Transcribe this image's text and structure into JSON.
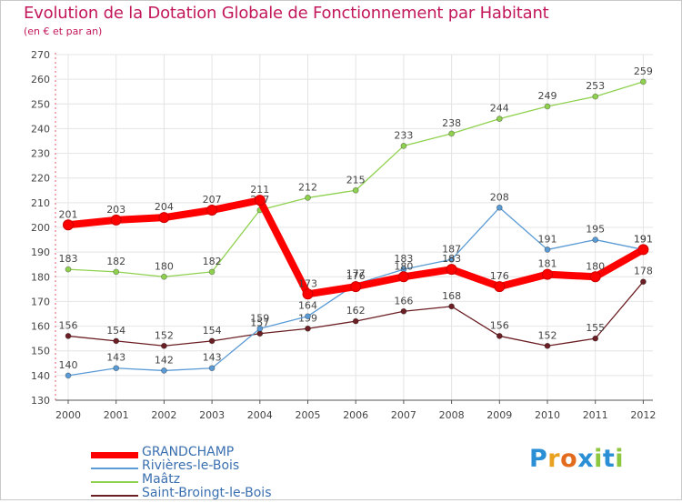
{
  "chart_data": {
    "type": "line",
    "title": "Evolution de la Dotation Globale de Fonctionnement par Habitant",
    "subtitle": "(en € et par an)",
    "xlabel": "",
    "ylabel": "",
    "categories": [
      "2000",
      "2001",
      "2002",
      "2003",
      "2004",
      "2005",
      "2006",
      "2007",
      "2008",
      "2009",
      "2010",
      "2011",
      "2012"
    ],
    "ylim": [
      130,
      270
    ],
    "yticks": [
      130,
      140,
      150,
      160,
      170,
      180,
      190,
      200,
      210,
      220,
      230,
      240,
      250,
      260,
      270
    ],
    "grid": true,
    "series": [
      {
        "name": "Saint-Broingt-le-Bois",
        "color": "#6b1f24",
        "values": [
          156,
          154,
          152,
          154,
          157,
          159,
          162,
          166,
          168,
          156,
          152,
          155,
          178
        ]
      },
      {
        "name": "Maâtz",
        "color": "#8fd14f",
        "values": [
          183,
          182,
          180,
          182,
          207,
          212,
          215,
          233,
          238,
          244,
          249,
          253,
          259
        ]
      },
      {
        "name": "Rivières-le-Bois",
        "color": "#5b9bd5",
        "values": [
          140,
          143,
          142,
          143,
          159,
          164,
          177,
          183,
          187,
          208,
          191,
          195,
          191
        ]
      },
      {
        "name": "GRANDCHAMP",
        "color": "#ff0000",
        "values": [
          201,
          203,
          204,
          207,
          211,
          173,
          176,
          180,
          183,
          176,
          181,
          180,
          191
        ]
      }
    ],
    "legend_order": [
      "GRANDCHAMP",
      "Rivières-le-Bois",
      "Maâtz",
      "Saint-Broingt-le-Bois"
    ],
    "legend_position": "bottom-left"
  },
  "logo": {
    "text": "Proxiti",
    "letters": [
      "P",
      "r",
      "o",
      "x",
      "i",
      "t",
      "i"
    ],
    "colors": [
      "#2b8fd6",
      "#e9a21f",
      "#e36b1e",
      "#2b8fd6",
      "#8dc63f",
      "#2b8fd6",
      "#8dc63f"
    ]
  }
}
